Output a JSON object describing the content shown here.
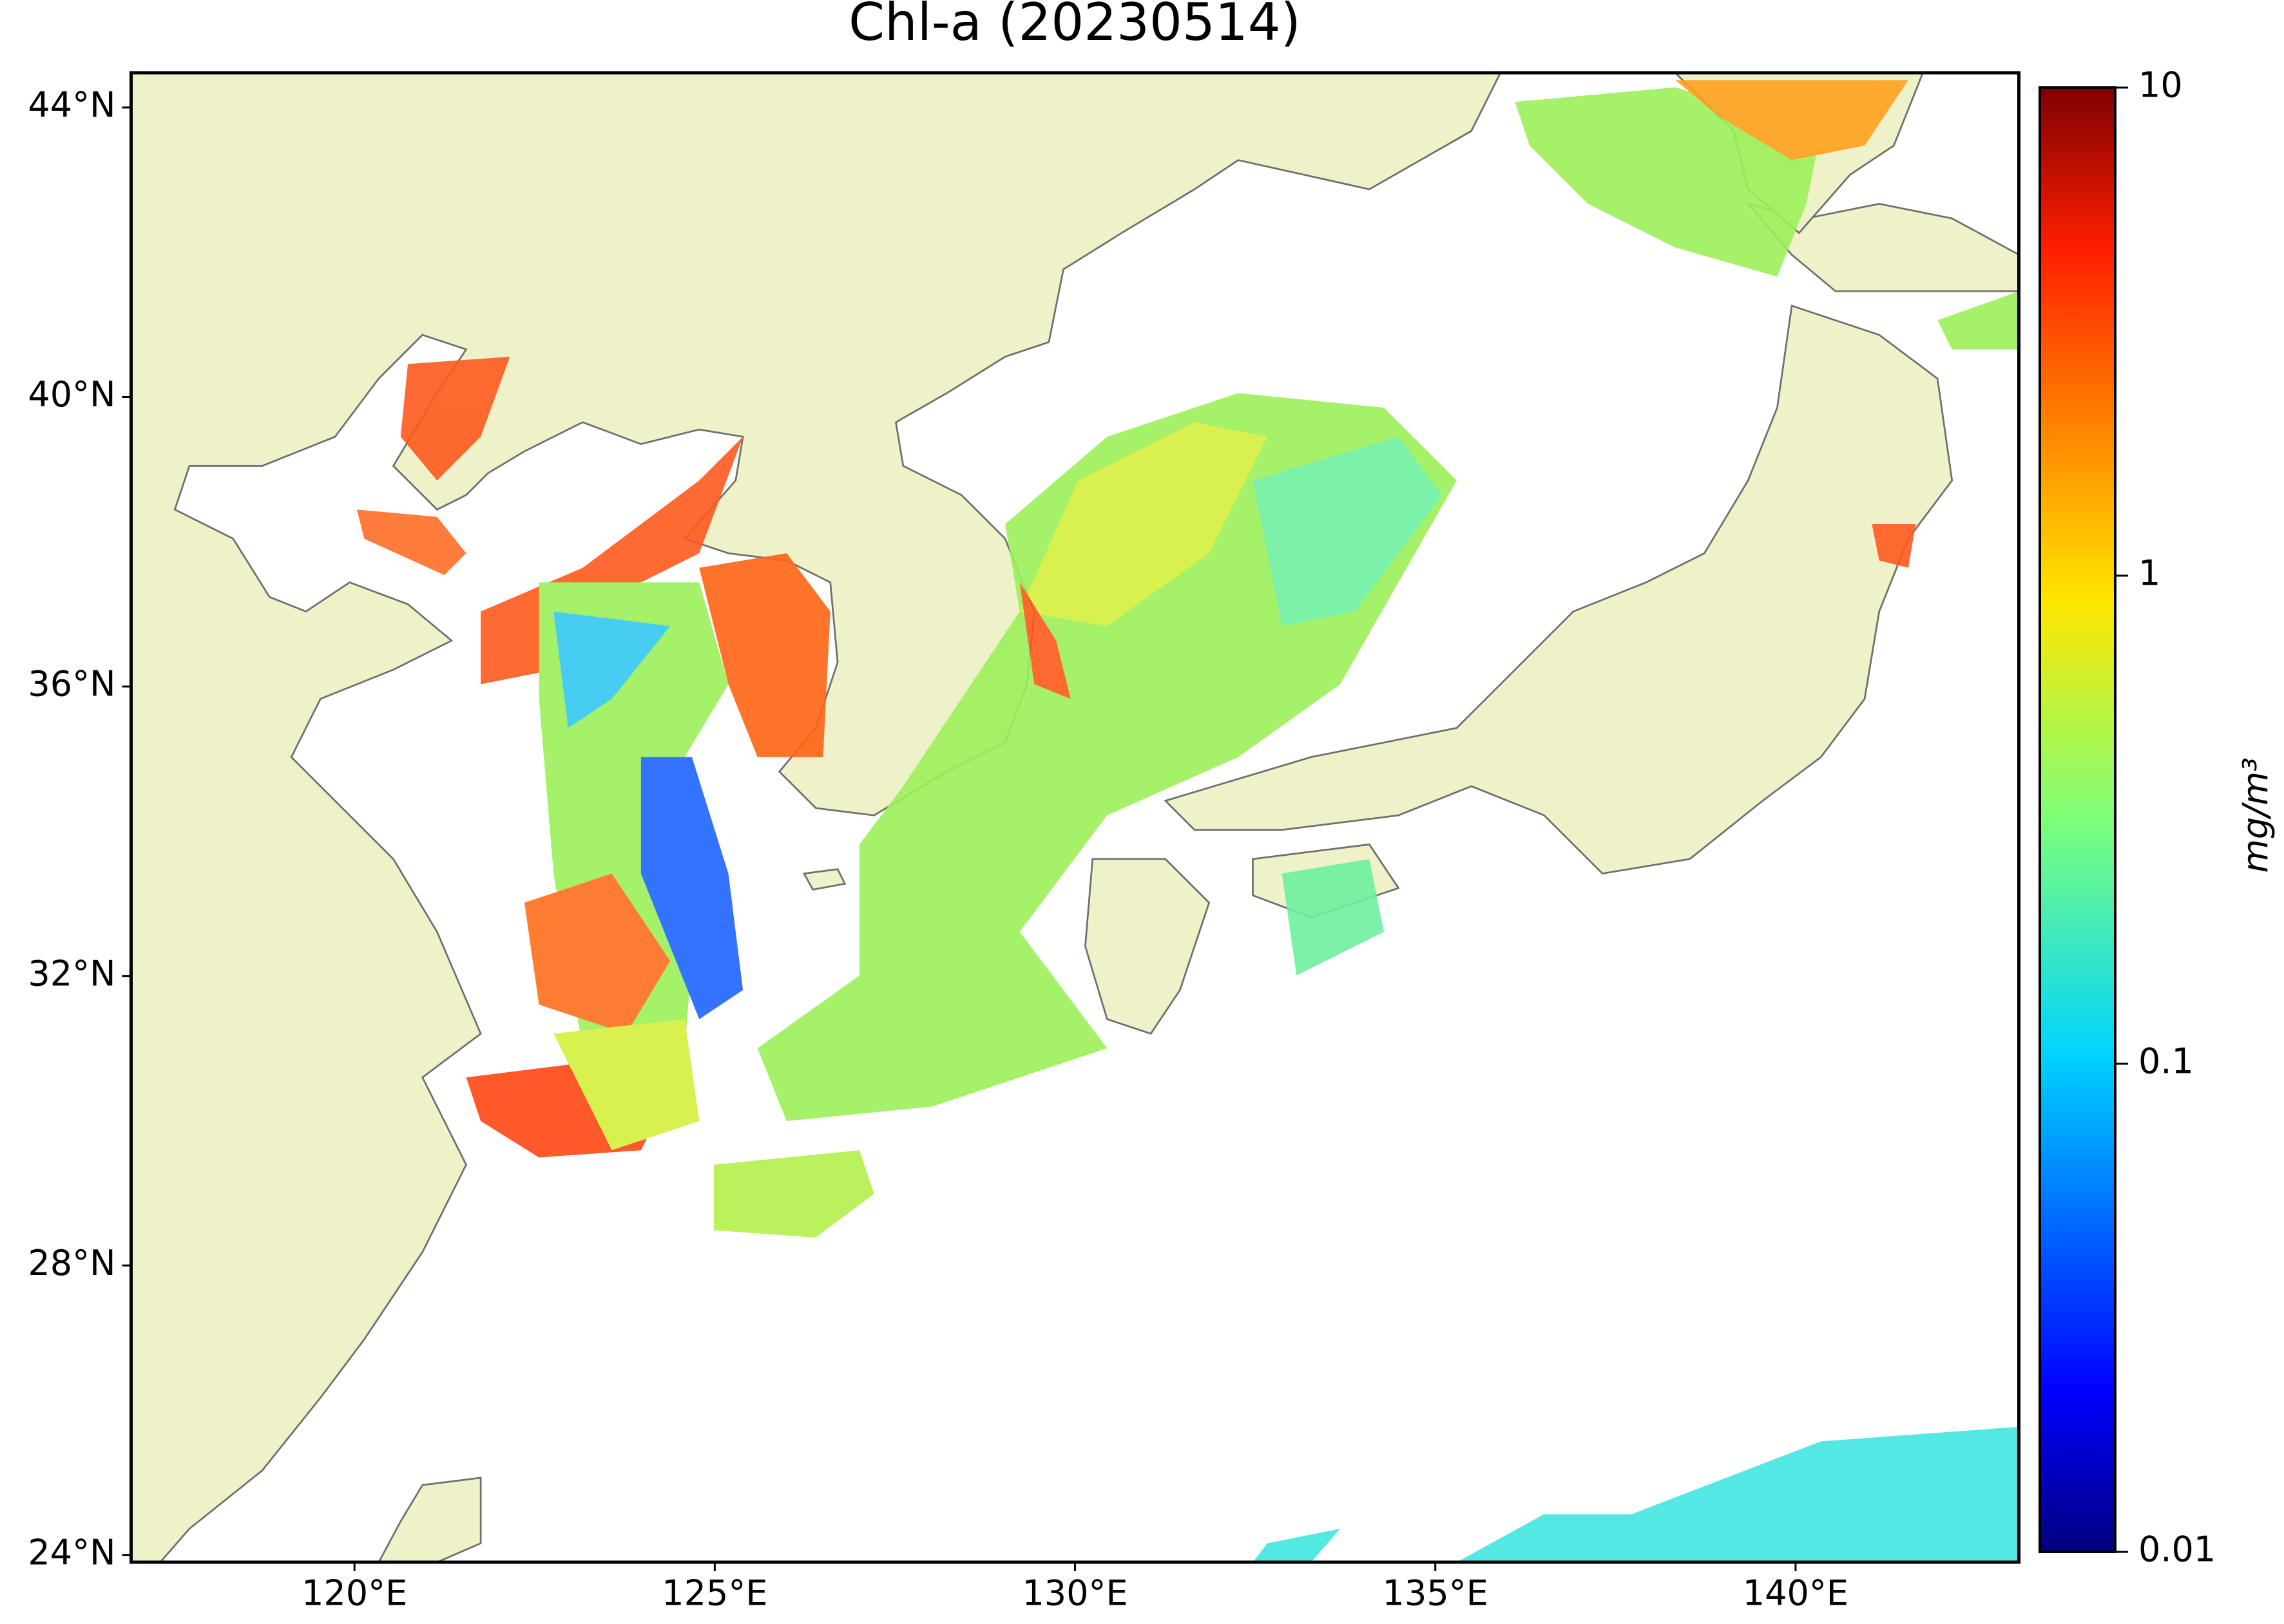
{
  "title": "Chl-a (20230514)",
  "map": {
    "xlim": [
      116.9,
      143.1
    ],
    "ylim": [
      23.9,
      44.48
    ],
    "xticks": [
      {
        "value": 120,
        "label": "120°E"
      },
      {
        "value": 125,
        "label": "125°E"
      },
      {
        "value": 130,
        "label": "130°E"
      },
      {
        "value": 135,
        "label": "135°E"
      },
      {
        "value": 140,
        "label": "140°E"
      }
    ],
    "yticks": [
      {
        "value": 24,
        "label": "24°N"
      },
      {
        "value": 28,
        "label": "28°N"
      },
      {
        "value": 32,
        "label": "32°N"
      },
      {
        "value": 36,
        "label": "36°N"
      },
      {
        "value": 40,
        "label": "40°N"
      },
      {
        "value": 44,
        "label": "44°N"
      }
    ]
  },
  "colorbar": {
    "label": "mg/m³",
    "scale": "log",
    "lim": [
      0.01,
      10
    ],
    "ticks": [
      0.01,
      0.1,
      1,
      10
    ]
  }
}
